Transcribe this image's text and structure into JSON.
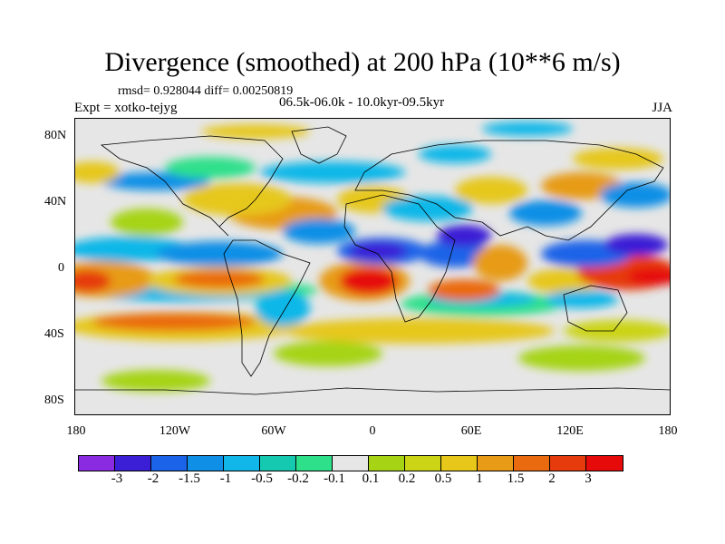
{
  "figure": {
    "title": "Divergence (smoothed) at 200 hPa (10**6 m/s)",
    "stats": "rmsd= 0.928044 diff= 0.00250819",
    "experiment": "Expt = xotko-tejyg",
    "period": "06.5k-06.0k - 10.0kyr-09.5kyr",
    "season": "JJA"
  },
  "axes": {
    "y_ticks": [
      "80N",
      "40N",
      "0",
      "40S",
      "80S"
    ],
    "x_ticks": [
      "180",
      "120W",
      "60W",
      "0",
      "60E",
      "120E",
      "180"
    ]
  },
  "colorbar": {
    "colors": [
      "#8a2be2",
      "#3b1fd6",
      "#1b63e8",
      "#0f8fe6",
      "#10b7e8",
      "#15c9b0",
      "#2ee08a",
      "#e6e6e6",
      "#a6d414",
      "#cbd415",
      "#e6c71a",
      "#e79b17",
      "#ea6a10",
      "#e63b0d",
      "#e60a0a"
    ],
    "labels": [
      "-3",
      "-2",
      "-1.5",
      "-1",
      "-0.5",
      "-0.2",
      "-0.1",
      "0.1",
      "0.2",
      "0.5",
      "1",
      "1.5",
      "2",
      "3"
    ]
  },
  "map_features": {
    "background_color": "#e6e6e6",
    "strong_convergence_centers": [
      "Atlantic / West Africa near equator",
      "Western Pacific near 10N",
      "Northern India / Arabian region"
    ],
    "strong_divergence_centers": [
      "Gulf of Guinea (equatorial Atlantic)",
      "Western Pacific / New Guinea",
      "Central Pacific near 180"
    ]
  }
}
